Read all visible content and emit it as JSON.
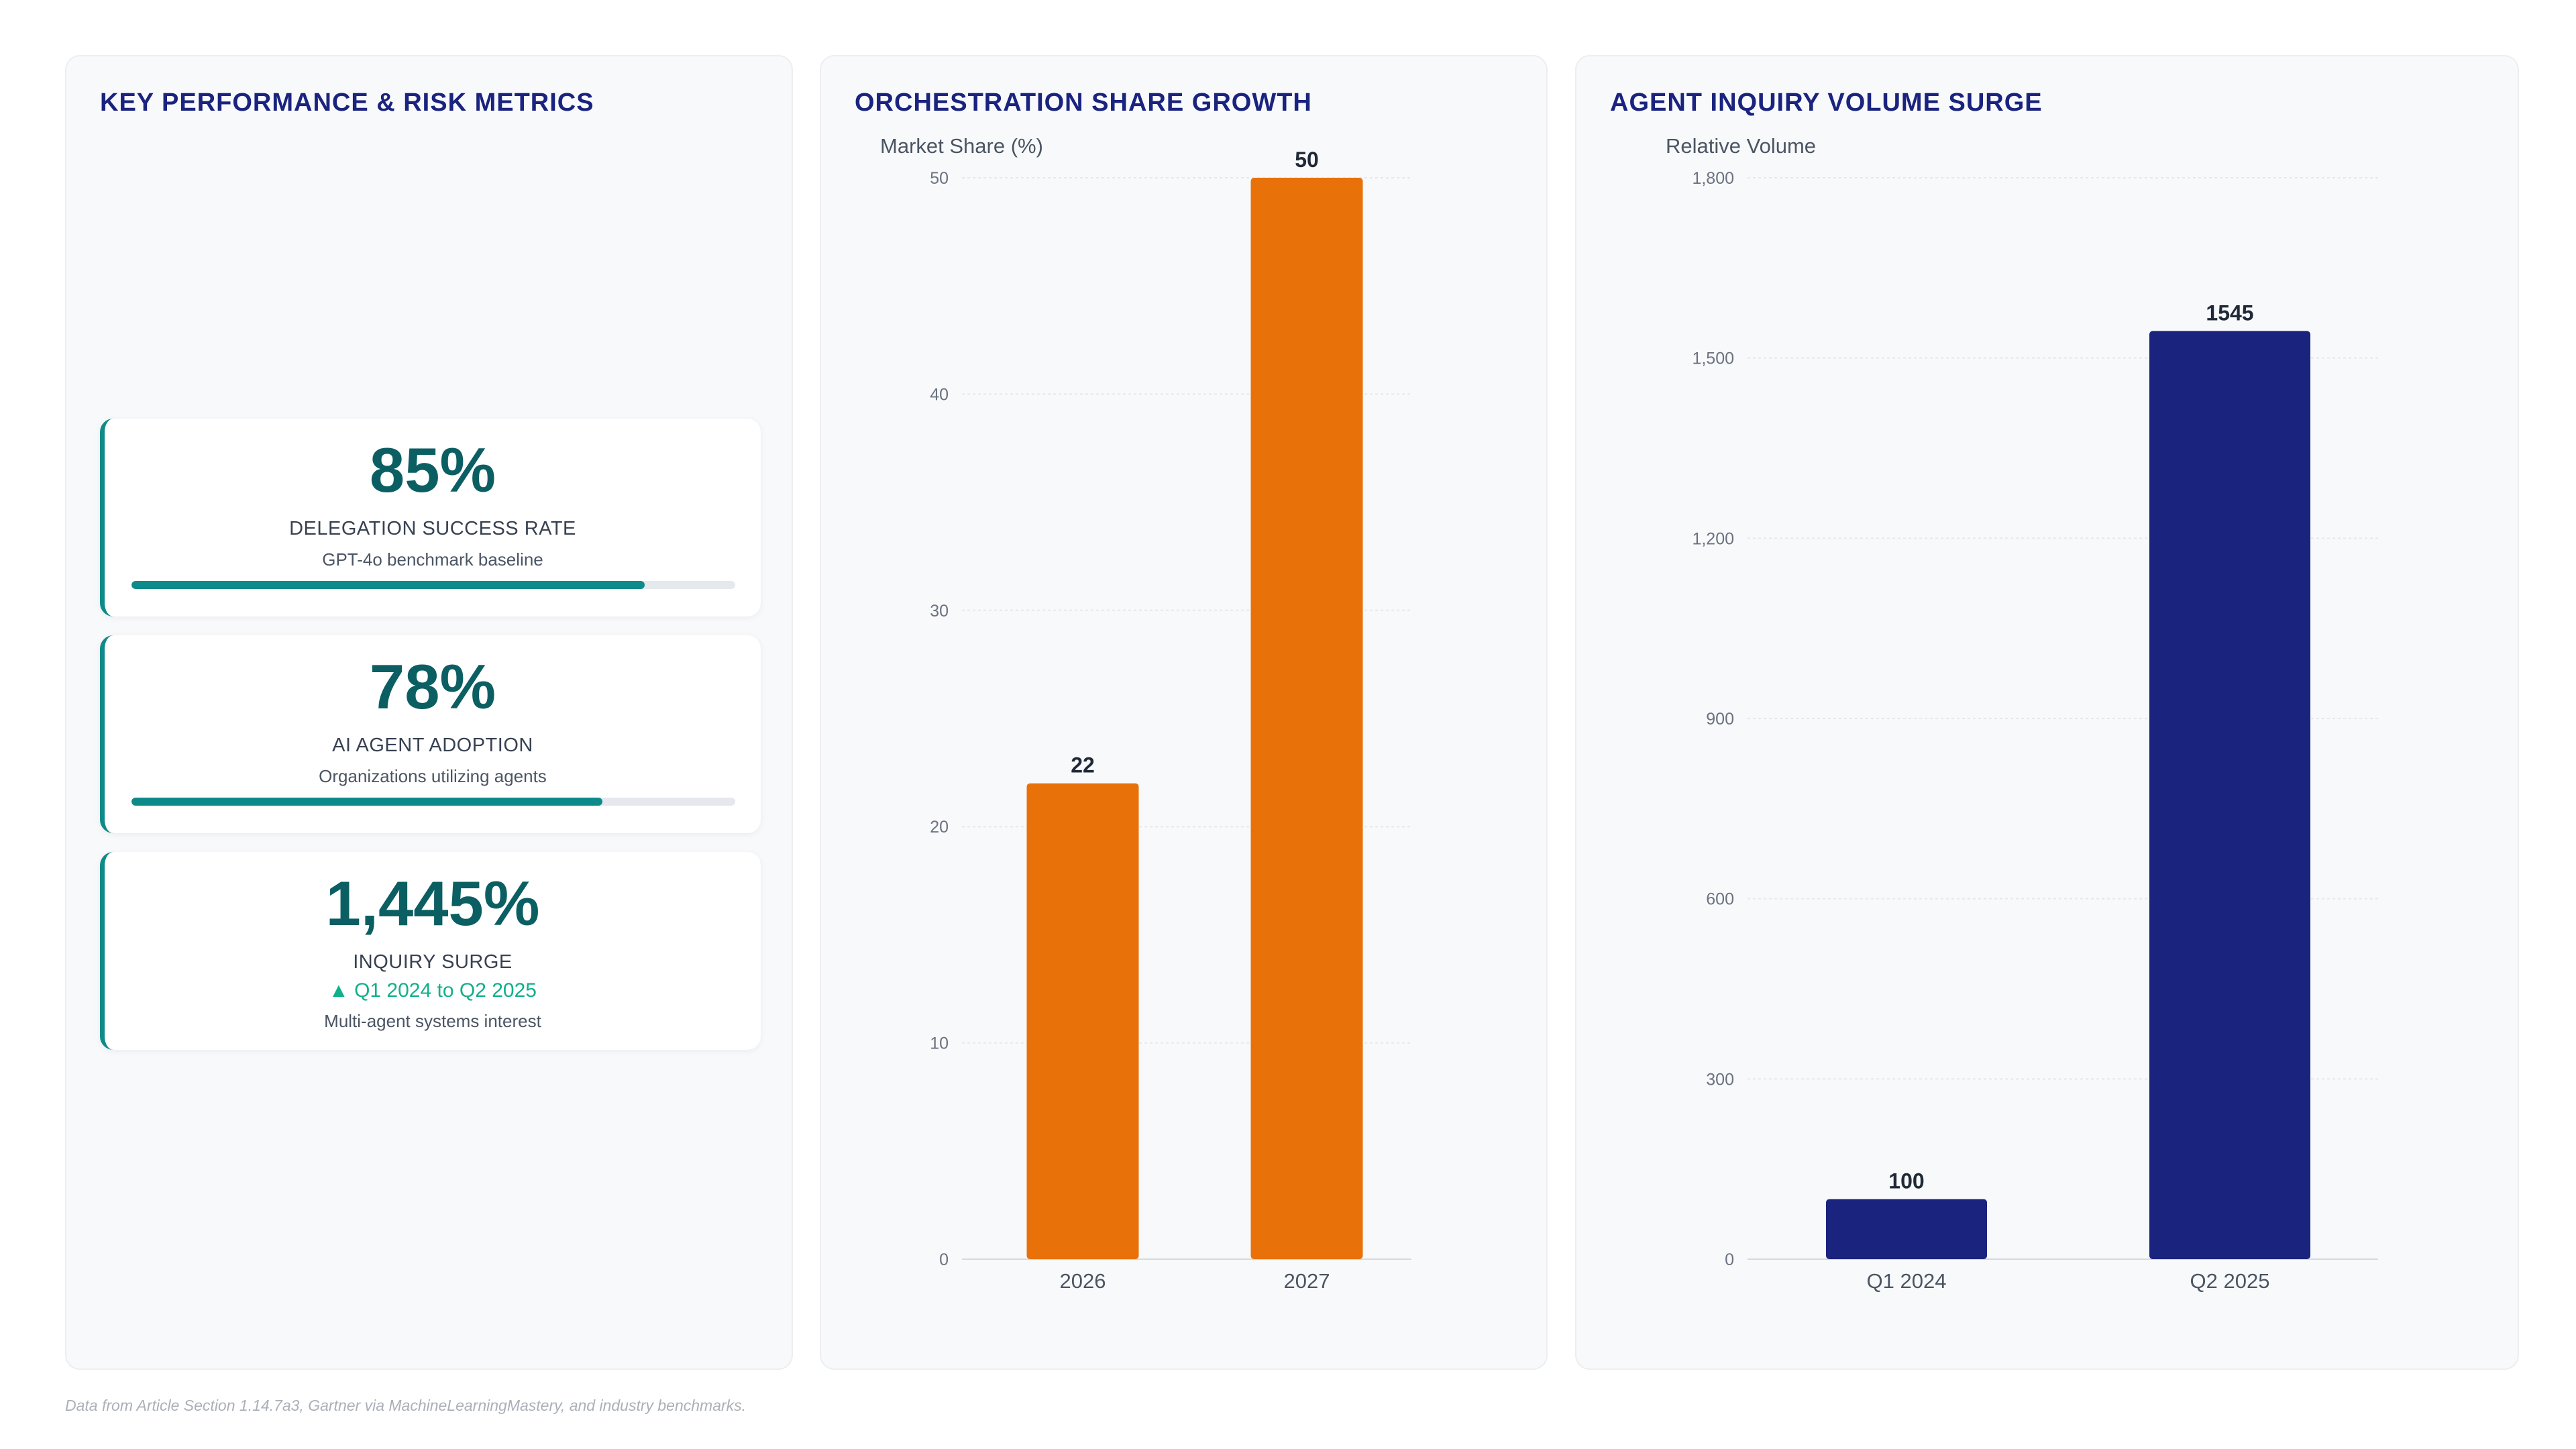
{
  "kpi_panel": {
    "title": "KEY PERFORMANCE & RISK METRICS",
    "cards": [
      {
        "value": "85%",
        "label": "DELEGATION SUCCESS RATE",
        "sub": "GPT-4o benchmark baseline",
        "progress": 0.85
      },
      {
        "value": "78%",
        "label": "AI AGENT ADOPTION",
        "sub": "Organizations utilizing agents",
        "progress": 0.78
      },
      {
        "value": "1,445%",
        "label": "INQUIRY SURGE",
        "trend": "▲ Q1 2024 to Q2 2025",
        "sub": "Multi-agent systems interest"
      }
    ]
  },
  "orchestration_panel": {
    "title": "ORCHESTRATION SHARE GROWTH"
  },
  "inquiry_panel": {
    "title": "AGENT INQUIRY VOLUME SURGE"
  },
  "chart_data": [
    {
      "type": "bar",
      "title": "ORCHESTRATION SHARE GROWTH",
      "ylabel": "Market Share (%)",
      "xlabel": "",
      "categories": [
        "2026",
        "2027"
      ],
      "values": [
        22,
        50
      ],
      "ylim": [
        0,
        50
      ],
      "yticks": [
        0,
        10,
        20,
        30,
        40,
        50
      ],
      "ytick_labels": [
        "0",
        "10",
        "20",
        "30",
        "40",
        "50"
      ],
      "data_labels": [
        "22",
        "50"
      ],
      "color": "#e8710a",
      "grid": true
    },
    {
      "type": "bar",
      "title": "AGENT INQUIRY VOLUME SURGE",
      "ylabel": "Relative Volume",
      "xlabel": "",
      "categories": [
        "Q1 2024",
        "Q2 2025"
      ],
      "values": [
        100,
        1545
      ],
      "ylim": [
        0,
        1800
      ],
      "yticks": [
        0,
        300,
        600,
        900,
        1200,
        1500,
        1800
      ],
      "ytick_labels": [
        "0",
        "300",
        "600",
        "900",
        "1,200",
        "1,500",
        "1,800"
      ],
      "data_labels": [
        "100",
        "1545"
      ],
      "color": "#1a237e",
      "grid": true
    }
  ],
  "footer": "Data from Article Section 1.14.7a3, Gartner via MachineLearningMastery, and industry benchmarks."
}
